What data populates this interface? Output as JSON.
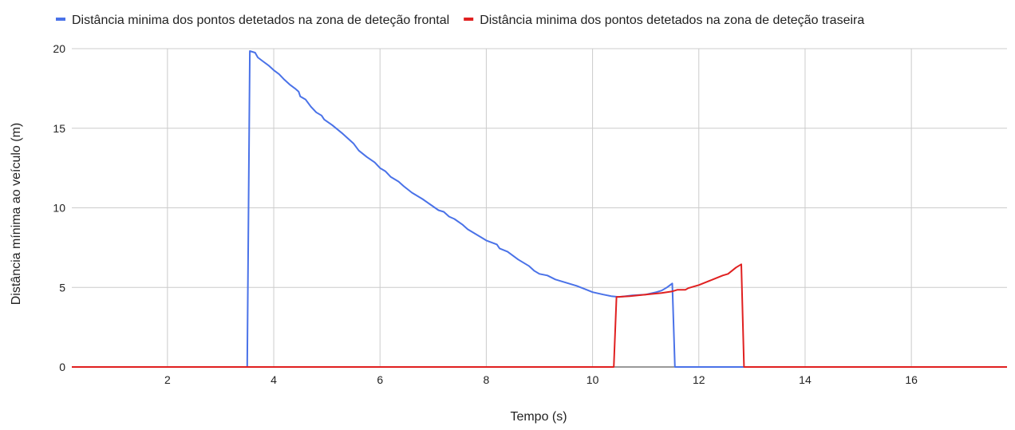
{
  "chart_data": {
    "type": "line",
    "title": "",
    "xlabel": "Tempo (s)",
    "ylabel": "Distância mínima ao veículo (m)",
    "xlim": [
      0.2,
      17.8
    ],
    "ylim": [
      0,
      20
    ],
    "x_ticks": [
      2,
      4,
      6,
      8,
      10,
      12,
      14,
      16
    ],
    "y_ticks": [
      0,
      5,
      10,
      15,
      20
    ],
    "grid": true,
    "legend_position": "top",
    "series": [
      {
        "name": "Distância minima dos pontos detetados na zona de deteção frontal",
        "color": "#4a72e8",
        "points": [
          [
            0.2,
            0
          ],
          [
            3.5,
            0
          ],
          [
            3.55,
            19.85
          ],
          [
            3.65,
            19.75
          ],
          [
            3.7,
            19.45
          ],
          [
            3.8,
            19.2
          ],
          [
            3.9,
            18.95
          ],
          [
            4.0,
            18.65
          ],
          [
            4.1,
            18.4
          ],
          [
            4.2,
            18.05
          ],
          [
            4.3,
            17.75
          ],
          [
            4.4,
            17.5
          ],
          [
            4.47,
            17.3
          ],
          [
            4.5,
            17.0
          ],
          [
            4.6,
            16.8
          ],
          [
            4.7,
            16.35
          ],
          [
            4.8,
            16.0
          ],
          [
            4.9,
            15.8
          ],
          [
            4.95,
            15.55
          ],
          [
            5.1,
            15.2
          ],
          [
            5.3,
            14.65
          ],
          [
            5.5,
            14.05
          ],
          [
            5.6,
            13.6
          ],
          [
            5.75,
            13.2
          ],
          [
            5.9,
            12.85
          ],
          [
            6.0,
            12.5
          ],
          [
            6.1,
            12.3
          ],
          [
            6.2,
            11.95
          ],
          [
            6.35,
            11.65
          ],
          [
            6.45,
            11.35
          ],
          [
            6.6,
            10.95
          ],
          [
            6.8,
            10.55
          ],
          [
            6.95,
            10.2
          ],
          [
            7.1,
            9.85
          ],
          [
            7.2,
            9.75
          ],
          [
            7.3,
            9.45
          ],
          [
            7.4,
            9.3
          ],
          [
            7.55,
            8.95
          ],
          [
            7.65,
            8.65
          ],
          [
            7.8,
            8.35
          ],
          [
            7.9,
            8.15
          ],
          [
            8.0,
            7.95
          ],
          [
            8.2,
            7.7
          ],
          [
            8.25,
            7.45
          ],
          [
            8.4,
            7.25
          ],
          [
            8.6,
            6.75
          ],
          [
            8.8,
            6.35
          ],
          [
            8.9,
            6.05
          ],
          [
            9.0,
            5.85
          ],
          [
            9.15,
            5.75
          ],
          [
            9.3,
            5.5
          ],
          [
            9.5,
            5.3
          ],
          [
            9.7,
            5.1
          ],
          [
            9.85,
            4.9
          ],
          [
            10.0,
            4.7
          ],
          [
            10.2,
            4.55
          ],
          [
            10.35,
            4.45
          ],
          [
            10.5,
            4.4
          ],
          [
            10.75,
            4.5
          ],
          [
            11.0,
            4.55
          ],
          [
            11.2,
            4.7
          ],
          [
            11.3,
            4.8
          ],
          [
            11.4,
            5.0
          ],
          [
            11.5,
            5.25
          ],
          [
            11.55,
            0
          ],
          [
            17.8,
            0
          ]
        ]
      },
      {
        "name": "Distância minima dos pontos detetados na zona de deteção traseira",
        "color": "#e02020",
        "points": [
          [
            0.2,
            0
          ],
          [
            10.4,
            0
          ],
          [
            10.45,
            4.4
          ],
          [
            10.7,
            4.45
          ],
          [
            11.0,
            4.55
          ],
          [
            11.3,
            4.65
          ],
          [
            11.5,
            4.75
          ],
          [
            11.6,
            4.85
          ],
          [
            11.75,
            4.85
          ],
          [
            11.8,
            4.95
          ],
          [
            12.0,
            5.15
          ],
          [
            12.15,
            5.35
          ],
          [
            12.3,
            5.55
          ],
          [
            12.45,
            5.75
          ],
          [
            12.55,
            5.85
          ],
          [
            12.7,
            6.25
          ],
          [
            12.8,
            6.45
          ],
          [
            12.85,
            0
          ],
          [
            17.8,
            0
          ]
        ]
      }
    ]
  }
}
